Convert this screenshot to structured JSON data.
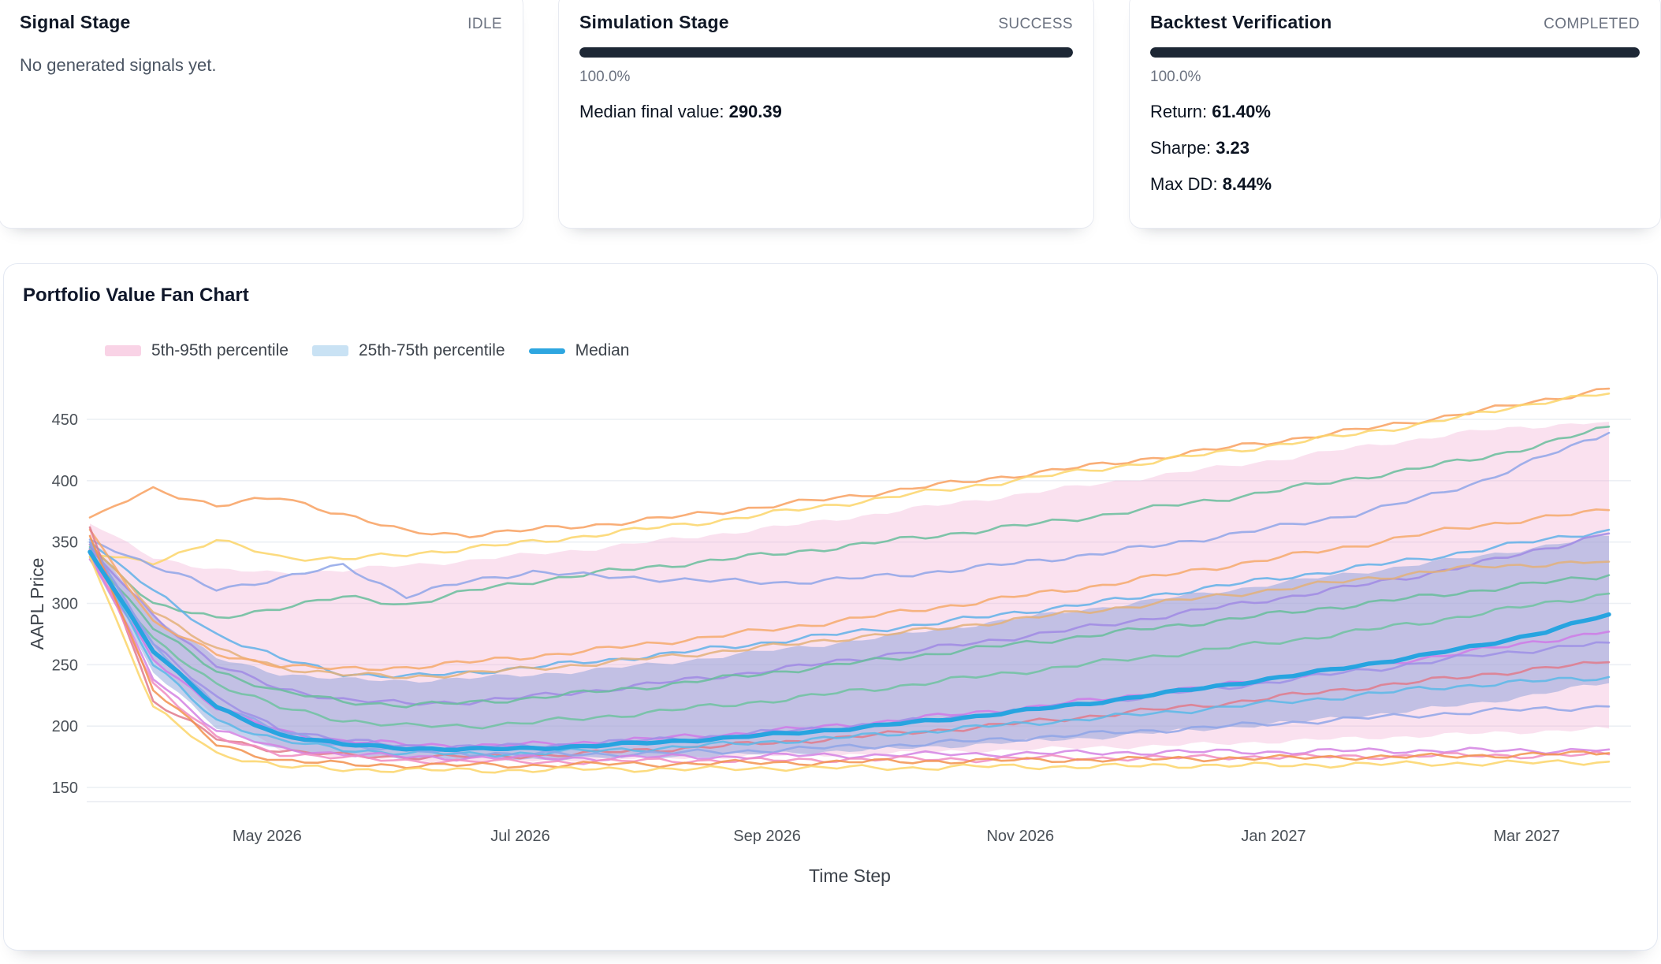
{
  "cards": [
    {
      "title": "Signal Stage",
      "status": "IDLE",
      "message": "No generated signals yet."
    },
    {
      "title": "Simulation Stage",
      "status": "SUCCESS",
      "progress_value": 100,
      "progress_percent": "100.0%",
      "metrics": [
        {
          "label": "Median final value:",
          "value": "290.39"
        }
      ]
    },
    {
      "title": "Backtest Verification",
      "status": "COMPLETED",
      "progress_value": 100,
      "progress_percent": "100.0%",
      "metrics": [
        {
          "label": "Return:",
          "value": "61.40%"
        },
        {
          "label": "Sharpe:",
          "value": "3.23"
        },
        {
          "label": "Max DD:",
          "value": "8.44%"
        }
      ]
    }
  ],
  "chart_card": {
    "title": "Portfolio Value Fan Chart"
  },
  "chart_data": {
    "type": "line",
    "title": "Portfolio Value Fan Chart",
    "xlabel": "Time Step",
    "ylabel": "AAPL Price",
    "ylim": [
      140,
      478
    ],
    "yticks": [
      150,
      200,
      250,
      300,
      350,
      400,
      450
    ],
    "x_tick_labels": [
      "May 2026",
      "Jul 2026",
      "Sep 2026",
      "Nov 2026",
      "Jan 2027",
      "Mar 2027"
    ],
    "x_tick_steps": [
      28,
      68,
      107,
      147,
      187,
      227
    ],
    "x_step_interval": 10,
    "x_max_step": 240,
    "grid": "horizontal-only",
    "legend_position": "top-left",
    "legend": [
      {
        "label": "5th-95th percentile",
        "swatch_color": "#f9d3e6",
        "kind": "band"
      },
      {
        "label": "25th-75th percentile",
        "swatch_color": "#c9e2f4",
        "kind": "band"
      },
      {
        "label": "Median",
        "swatch_color": "#2ea6e0",
        "kind": "line"
      }
    ],
    "bands": [
      {
        "name": "5th-95th percentile",
        "fill": "#f3b1d4",
        "fill_opacity": 0.38,
        "upper": [
          365,
          338,
          327,
          325,
          327,
          331,
          335,
          340,
          345,
          351,
          357,
          363,
          370,
          377,
          384,
          391,
          398,
          405,
          412,
          419,
          427,
          434,
          441,
          445,
          448
        ],
        "lower": [
          340,
          255,
          205,
          182,
          175,
          173,
          172,
          172,
          173,
          174,
          175,
          176,
          177,
          178,
          180,
          181,
          183,
          184,
          186,
          188,
          190,
          192,
          194,
          196,
          198
        ]
      },
      {
        "name": "25th-75th percentile",
        "fill": "#7e9ad8",
        "fill_opacity": 0.45,
        "upper": [
          350,
          290,
          255,
          243,
          238,
          237,
          239,
          242,
          246,
          251,
          257,
          263,
          269,
          276,
          283,
          290,
          297,
          304,
          311,
          318,
          325,
          332,
          339,
          347,
          355
        ],
        "lower": [
          335,
          245,
          198,
          182,
          176,
          174,
          173,
          173,
          174,
          175,
          176,
          178,
          180,
          182,
          185,
          188,
          191,
          195,
          199,
          203,
          208,
          213,
          219,
          227,
          235
        ]
      }
    ],
    "median": {
      "name": "Median",
      "color": "#27a4e0",
      "final_value": 290.39,
      "values": [
        342,
        262,
        215,
        193,
        185,
        182,
        181,
        182,
        184,
        187,
        190,
        194,
        198,
        203,
        208,
        214,
        220,
        227,
        234,
        241,
        249,
        257,
        266,
        277,
        291
      ]
    },
    "sample_paths": [
      {
        "color": "#f8a05f",
        "values": [
          370,
          393,
          380,
          386,
          373,
          358,
          356,
          360,
          364,
          369,
          375,
          381,
          387,
          394,
          400,
          407,
          413,
          420,
          427,
          434,
          441,
          449,
          457,
          466,
          475
        ]
      },
      {
        "color": "#fbd568",
        "values": [
          340,
          334,
          351,
          338,
          336,
          340,
          345,
          350,
          356,
          362,
          368,
          375,
          382,
          389,
          396,
          403,
          410,
          417,
          424,
          431,
          438,
          446,
          455,
          465,
          471
        ]
      },
      {
        "color": "#67bd9b",
        "values": [
          346,
          300,
          287,
          297,
          305,
          299,
          310,
          318,
          325,
          330,
          336,
          341,
          347,
          353,
          359,
          365,
          372,
          379,
          386,
          394,
          402,
          410,
          419,
          430,
          444
        ]
      },
      {
        "color": "#8ea4e8",
        "values": [
          352,
          330,
          312,
          320,
          331,
          306,
          318,
          326,
          322,
          320,
          318,
          317,
          320,
          324,
          329,
          335,
          341,
          348,
          356,
          364,
          373,
          385,
          400,
          420,
          439
        ]
      },
      {
        "color": "#5fb0e8",
        "values": [
          350,
          310,
          275,
          255,
          243,
          240,
          244,
          248,
          253,
          258,
          264,
          270,
          276,
          282,
          288,
          295,
          301,
          308,
          315,
          322,
          329,
          336,
          344,
          352,
          360
        ]
      },
      {
        "color": "#a08ae4",
        "values": [
          344,
          290,
          250,
          230,
          222,
          218,
          220,
          224,
          229,
          235,
          241,
          247,
          254,
          261,
          268,
          275,
          282,
          290,
          298,
          306,
          314,
          323,
          333,
          345,
          357
        ]
      },
      {
        "color": "#e3b079",
        "values": [
          348,
          295,
          262,
          248,
          242,
          240,
          243,
          247,
          251,
          256,
          261,
          266,
          272,
          277,
          283,
          289,
          295,
          301,
          307,
          313,
          319,
          325,
          330,
          332,
          334
        ]
      },
      {
        "color": "#f5a96b",
        "values": [
          360,
          285,
          258,
          250,
          246,
          248,
          252,
          257,
          262,
          268,
          274,
          280,
          287,
          294,
          301,
          308,
          315,
          323,
          331,
          339,
          347,
          356,
          364,
          370,
          376
        ]
      },
      {
        "color": "#67bd9b",
        "values": [
          340,
          280,
          245,
          228,
          220,
          217,
          219,
          223,
          228,
          233,
          239,
          245,
          251,
          257,
          263,
          269,
          275,
          281,
          287,
          293,
          299,
          305,
          311,
          317,
          323
        ]
      },
      {
        "color": "#6fc2a0",
        "values": [
          338,
          270,
          235,
          215,
          205,
          200,
          200,
          203,
          207,
          212,
          217,
          222,
          228,
          234,
          240,
          246,
          252,
          258,
          264,
          270,
          277,
          284,
          292,
          300,
          308
        ]
      },
      {
        "color": "#cf7ae8",
        "values": [
          336,
          255,
          215,
          196,
          188,
          185,
          184,
          185,
          187,
          190,
          193,
          197,
          201,
          206,
          211,
          216,
          222,
          228,
          234,
          241,
          248,
          255,
          262,
          270,
          277
        ]
      },
      {
        "color": "#9d8fe6",
        "values": [
          348,
          268,
          222,
          198,
          188,
          184,
          183,
          184,
          186,
          189,
          192,
          196,
          200,
          204,
          209,
          214,
          220,
          226,
          232,
          238,
          245,
          251,
          258,
          263,
          268
        ]
      },
      {
        "color": "#e07a8b",
        "values": [
          362,
          220,
          190,
          180,
          176,
          175,
          175,
          176,
          178,
          181,
          184,
          187,
          191,
          195,
          199,
          204,
          209,
          214,
          219,
          225,
          231,
          236,
          242,
          247,
          252
        ]
      },
      {
        "color": "#5bb8e8",
        "values": [
          345,
          250,
          205,
          188,
          181,
          178,
          177,
          178,
          180,
          182,
          185,
          188,
          191,
          195,
          199,
          203,
          207,
          211,
          216,
          220,
          225,
          230,
          234,
          237,
          240
        ]
      },
      {
        "color": "#8ea4e8",
        "values": [
          350,
          265,
          218,
          195,
          185,
          180,
          178,
          177,
          177,
          178,
          179,
          181,
          183,
          185,
          188,
          191,
          194,
          197,
          200,
          203,
          206,
          209,
          212,
          214,
          216
        ]
      },
      {
        "color": "#d483e3",
        "values": [
          340,
          240,
          196,
          182,
          177,
          175,
          174,
          174,
          174,
          175,
          175,
          176,
          176,
          177,
          177,
          178,
          178,
          179,
          179,
          179,
          180,
          180,
          180,
          180,
          181
        ]
      },
      {
        "color": "#f08bbf",
        "values": [
          344,
          235,
          190,
          178,
          174,
          172,
          171,
          171,
          171,
          172,
          172,
          172,
          173,
          173,
          173,
          174,
          174,
          174,
          175,
          175,
          175,
          176,
          176,
          176,
          177
        ]
      },
      {
        "color": "#f2924d",
        "values": [
          355,
          230,
          185,
          172,
          169,
          168,
          168,
          168,
          169,
          169,
          170,
          170,
          171,
          171,
          172,
          172,
          173,
          173,
          174,
          174,
          175,
          175,
          176,
          177,
          178
        ]
      },
      {
        "color": "#fbd568",
        "values": [
          338,
          215,
          178,
          167,
          165,
          164,
          164,
          164,
          165,
          165,
          165,
          166,
          166,
          166,
          167,
          167,
          167,
          168,
          168,
          168,
          169,
          169,
          170,
          170,
          171
        ]
      }
    ],
    "style": {
      "grid_color": "#eceff4",
      "axis_text_color": "#4a5057",
      "axis_title_color": "#3d434b",
      "progress_bar_color": "#1d2735"
    }
  }
}
